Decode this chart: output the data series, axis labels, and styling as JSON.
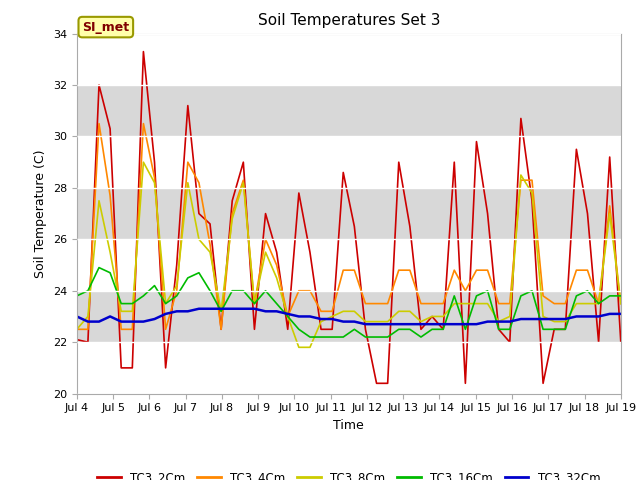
{
  "title": "Soil Temperatures Set 3",
  "xlabel": "Time",
  "ylabel": "Soil Temperature (C)",
  "ylim": [
    20,
    34
  ],
  "yticks": [
    20,
    22,
    24,
    26,
    28,
    30,
    32,
    34
  ],
  "fig_bg_color": "#ffffff",
  "plot_bg_color": "#ffffff",
  "shade_color": "#d8d8d8",
  "annotation_text": "SI_met",
  "annotation_bg": "#ffffaa",
  "annotation_border": "#999900",
  "series": {
    "TC3_2Cm": {
      "color": "#cc0000",
      "lw": 1.2
    },
    "TC3_4Cm": {
      "color": "#ff8800",
      "lw": 1.2
    },
    "TC3_8Cm": {
      "color": "#cccc00",
      "lw": 1.2
    },
    "TC3_16Cm": {
      "color": "#00bb00",
      "lw": 1.2
    },
    "TC3_32Cm": {
      "color": "#0000cc",
      "lw": 1.8
    }
  },
  "x_tick_labels": [
    "Jul 4",
    "Jul 5",
    "Jul 6",
    "Jul 7",
    "Jul 8",
    "Jul 9",
    "Jul 10",
    "Jul 11",
    "Jul 12",
    "Jul 13",
    "Jul 14",
    "Jul 15",
    "Jul 16",
    "Jul 17",
    "Jul 18",
    "Jul 19"
  ],
  "TC3_2Cm": [
    22.1,
    22.0,
    32.0,
    30.3,
    21.0,
    21.0,
    33.3,
    29.0,
    21.0,
    25.0,
    31.2,
    27.0,
    26.6,
    22.5,
    27.5,
    29.0,
    22.5,
    27.0,
    25.5,
    22.5,
    27.8,
    25.5,
    22.5,
    22.5,
    28.6,
    26.5,
    22.5,
    20.4,
    20.4,
    29.0,
    26.5,
    22.5,
    23.0,
    22.5,
    29.0,
    20.4,
    29.8,
    27.0,
    22.5,
    22.0,
    30.7,
    27.5,
    20.4,
    22.5,
    22.5,
    29.5,
    27.0,
    22.0,
    29.2,
    22.0
  ],
  "TC3_4Cm": [
    22.5,
    22.5,
    30.5,
    27.7,
    22.5,
    22.5,
    30.5,
    28.4,
    22.5,
    24.0,
    29.0,
    28.2,
    25.8,
    22.5,
    27.0,
    28.3,
    23.5,
    26.0,
    25.0,
    23.0,
    24.0,
    24.0,
    23.2,
    23.2,
    24.8,
    24.8,
    23.5,
    23.5,
    23.5,
    24.8,
    24.8,
    23.5,
    23.5,
    23.5,
    24.8,
    24.0,
    24.8,
    24.8,
    23.5,
    23.5,
    28.3,
    28.3,
    23.8,
    23.5,
    23.5,
    24.8,
    24.8,
    23.5,
    27.3,
    23.5
  ],
  "TC3_8Cm": [
    22.5,
    23.0,
    27.5,
    25.5,
    23.2,
    23.2,
    29.0,
    28.2,
    23.5,
    24.2,
    28.2,
    26.0,
    25.5,
    23.2,
    26.8,
    28.2,
    23.5,
    25.5,
    24.5,
    23.0,
    21.8,
    21.8,
    22.8,
    23.0,
    23.2,
    23.2,
    22.8,
    22.8,
    22.8,
    23.2,
    23.2,
    22.8,
    23.0,
    23.0,
    23.5,
    23.5,
    23.5,
    23.5,
    22.8,
    23.0,
    28.5,
    27.8,
    23.0,
    22.8,
    22.8,
    23.5,
    23.5,
    23.5,
    27.0,
    23.5
  ],
  "TC3_16Cm": [
    23.8,
    24.0,
    24.9,
    24.7,
    23.5,
    23.5,
    23.8,
    24.2,
    23.5,
    23.8,
    24.5,
    24.7,
    24.0,
    23.2,
    24.0,
    24.0,
    23.5,
    24.0,
    23.5,
    23.0,
    22.5,
    22.2,
    22.2,
    22.2,
    22.2,
    22.5,
    22.2,
    22.2,
    22.2,
    22.5,
    22.5,
    22.2,
    22.5,
    22.5,
    23.8,
    22.5,
    23.8,
    24.0,
    22.5,
    22.5,
    23.8,
    24.0,
    22.5,
    22.5,
    22.5,
    23.8,
    24.0,
    23.5,
    23.8,
    23.8
  ],
  "TC3_32Cm": [
    23.0,
    22.8,
    22.8,
    23.0,
    22.8,
    22.8,
    22.8,
    22.9,
    23.1,
    23.2,
    23.2,
    23.3,
    23.3,
    23.3,
    23.3,
    23.3,
    23.3,
    23.2,
    23.2,
    23.1,
    23.0,
    23.0,
    22.9,
    22.9,
    22.8,
    22.8,
    22.7,
    22.7,
    22.7,
    22.7,
    22.7,
    22.7,
    22.7,
    22.7,
    22.7,
    22.7,
    22.7,
    22.8,
    22.8,
    22.8,
    22.9,
    22.9,
    22.9,
    22.9,
    22.9,
    23.0,
    23.0,
    23.0,
    23.1,
    23.1
  ]
}
